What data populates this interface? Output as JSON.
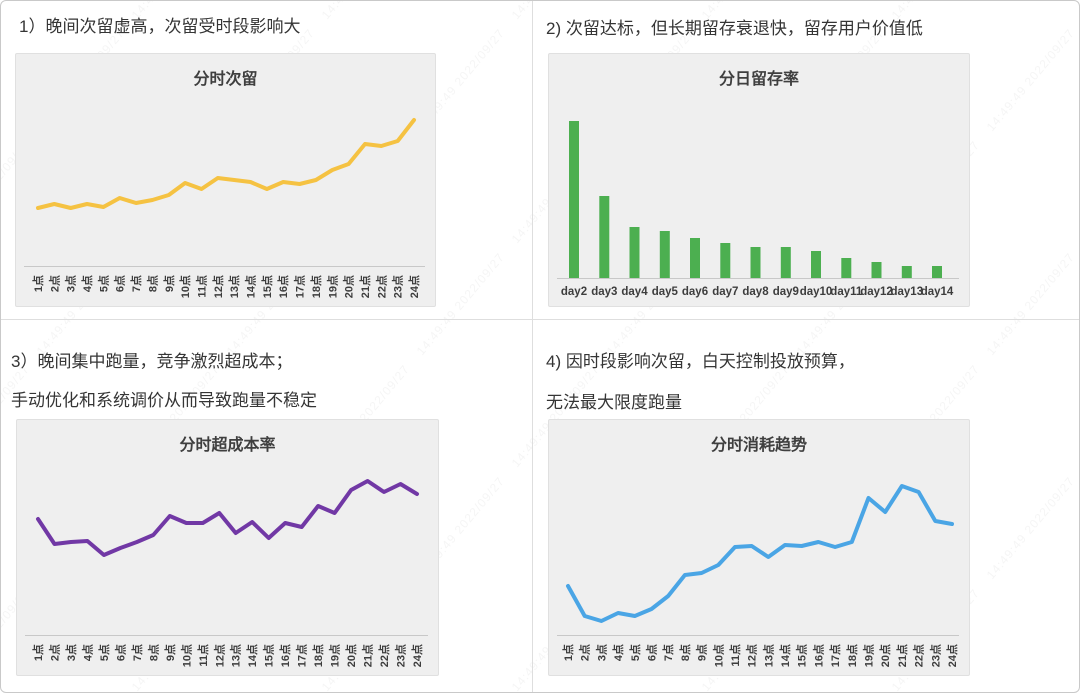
{
  "watermark": {
    "text": "14:49:49 2022/09/27"
  },
  "colors": {
    "page_background": "#ffffff",
    "page_border": "#c9c9c9",
    "divider": "#dedede",
    "panel_background": "#efefef",
    "panel_border": "#e0e0e0",
    "axis_line": "#c8c8c8",
    "label_text": "#3d3d3d",
    "headline_text": "#353535",
    "line_yellow": "#f5c242",
    "bar_green": "#4caf50",
    "line_purple": "#7138a5",
    "line_blue": "#4aa5e5"
  },
  "sections": [
    {
      "id": "hourly-next-day-retention",
      "heading_lines": [
        "1）晚间次留虚高，次留受时段影响大"
      ]
    },
    {
      "id": "daily-retention",
      "heading_lines": [
        "2) 次留达标，但长期留存衰退快，留存用户价值低"
      ]
    },
    {
      "id": "hourly-overcost",
      "heading_lines": [
        "3）晚间集中跑量，竞争激烈超成本；",
        "手动优化和系统调价从而导致跑量不稳定"
      ]
    },
    {
      "id": "hourly-spend",
      "heading_lines": [
        "4) 因时段影响次留，白天控制投放预算，",
        "无法最大限度跑量"
      ]
    }
  ],
  "chart_data": [
    {
      "type": "line",
      "title": "分时次留",
      "color": "#f5c242",
      "categories": [
        "1点",
        "2点",
        "3点",
        "4点",
        "5点",
        "6点",
        "7点",
        "8点",
        "9点",
        "10点",
        "11点",
        "12点",
        "13点",
        "14点",
        "15点",
        "16点",
        "17点",
        "18点",
        "19点",
        "20点",
        "21点",
        "22点",
        "23点",
        "24点"
      ],
      "values": [
        58,
        62,
        58,
        62,
        59,
        68,
        63,
        66,
        71,
        83,
        77,
        88,
        86,
        84,
        77,
        84,
        82,
        86,
        96,
        102,
        122,
        120,
        125,
        146
      ],
      "value_unit": "relative height (no y-axis labels shown)",
      "ylim": [
        0,
        180
      ],
      "grid": "off",
      "legend": "none"
    },
    {
      "type": "bar",
      "title": "分日留存率",
      "color": "#4caf50",
      "categories": [
        "day2",
        "day3",
        "day4",
        "day5",
        "day6",
        "day7",
        "day8",
        "day9",
        "day10",
        "day11",
        "day12",
        "day13",
        "day14"
      ],
      "values": [
        157,
        82,
        51,
        47,
        40,
        35,
        31,
        31,
        27,
        20,
        16,
        12,
        12
      ],
      "value_unit": "relative height (no y-axis labels shown)",
      "ylim": [
        0,
        180
      ],
      "grid": "off",
      "legend": "none"
    },
    {
      "type": "line",
      "title": "分时超成本率",
      "color": "#7138a5",
      "categories": [
        "1点",
        "2点",
        "3点",
        "4点",
        "5点",
        "6点",
        "7点",
        "8点",
        "9点",
        "10点",
        "11点",
        "12点",
        "13点",
        "14点",
        "15点",
        "16点",
        "17点",
        "18点",
        "19点",
        "20点",
        "21点",
        "22点",
        "23点",
        "24点"
      ],
      "values": [
        116,
        91,
        93,
        94,
        80,
        87,
        93,
        100,
        119,
        112,
        112,
        122,
        102,
        113,
        97,
        112,
        108,
        129,
        122,
        145,
        154,
        143,
        151,
        141
      ],
      "value_unit": "relative height (no y-axis labels shown)",
      "ylim": [
        0,
        180
      ],
      "grid": "off",
      "legend": "none"
    },
    {
      "type": "line",
      "title": "分时消耗趋势",
      "color": "#4aa5e5",
      "categories": [
        "1点",
        "2点",
        "3点",
        "4点",
        "5点",
        "6点",
        "7点",
        "8点",
        "9点",
        "10点",
        "11点",
        "12点",
        "13点",
        "14点",
        "15点",
        "16点",
        "17点",
        "18点",
        "19点",
        "20点",
        "21点",
        "22点",
        "23点",
        "24点"
      ],
      "values": [
        49,
        19,
        14,
        22,
        19,
        26,
        39,
        60,
        62,
        70,
        88,
        89,
        78,
        90,
        89,
        93,
        88,
        93,
        137,
        123,
        149,
        143,
        114,
        111
      ],
      "value_unit": "relative height (no y-axis labels shown)",
      "ylim": [
        0,
        180
      ],
      "grid": "off",
      "legend": "none"
    }
  ]
}
